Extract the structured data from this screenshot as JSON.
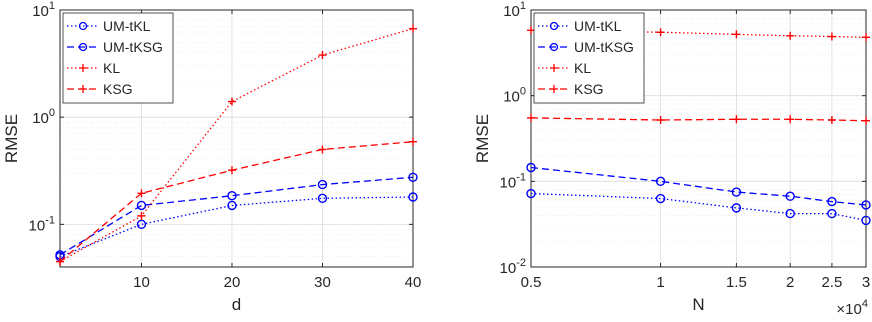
{
  "chart_data": [
    {
      "type": "line",
      "xlabel": "d",
      "ylabel": "RMSE",
      "yscale": "log",
      "xlim": [
        1,
        40
      ],
      "ylim": [
        0.04,
        10
      ],
      "xticks": [
        10,
        20,
        30,
        40
      ],
      "xtick_labels": [
        "10",
        "20",
        "30",
        "40"
      ],
      "yticks": [
        0.1,
        1,
        10
      ],
      "ytick_labels": [
        {
          "base": "10",
          "exp": "-1"
        },
        {
          "base": "10",
          "exp": "0"
        },
        {
          "base": "10",
          "exp": "1"
        }
      ],
      "grid": true,
      "legend_position": "top-left",
      "x": [
        1,
        10,
        20,
        30,
        40
      ],
      "series": [
        {
          "name": "UM-tKL",
          "color": "#0000ff",
          "dash": "dotted",
          "marker": "circle",
          "values": [
            0.05,
            0.1,
            0.15,
            0.175,
            0.18
          ]
        },
        {
          "name": "UM-tKSG",
          "color": "#0000ff",
          "dash": "dashed",
          "marker": "circle",
          "values": [
            0.052,
            0.15,
            0.185,
            0.235,
            0.275
          ]
        },
        {
          "name": "KL",
          "color": "#ff0000",
          "dash": "dotted",
          "marker": "plus",
          "values": [
            0.045,
            0.12,
            1.4,
            3.8,
            6.7
          ]
        },
        {
          "name": "KSG",
          "color": "#ff0000",
          "dash": "dashed",
          "marker": "plus",
          "values": [
            0.045,
            0.195,
            0.32,
            0.5,
            0.59
          ]
        }
      ]
    },
    {
      "type": "line",
      "xlabel": "N",
      "ylabel": "RMSE",
      "xscale": "log",
      "yscale": "log",
      "xlim": [
        5000,
        30000
      ],
      "ylim": [
        0.01,
        10
      ],
      "xticks": [
        5000,
        10000,
        15000,
        20000,
        25000,
        30000
      ],
      "xtick_labels": [
        "0.5",
        "1",
        "1.5",
        "2",
        "2.5",
        "3"
      ],
      "x_multiplier": {
        "base": "×10",
        "exp": "4"
      },
      "yticks": [
        0.01,
        0.1,
        1,
        10
      ],
      "ytick_labels": [
        {
          "base": "10",
          "exp": "-2"
        },
        {
          "base": "10",
          "exp": "-1"
        },
        {
          "base": "10",
          "exp": "0"
        },
        {
          "base": "10",
          "exp": "1"
        }
      ],
      "grid": true,
      "legend_position": "top-left",
      "x": [
        5000,
        10000,
        15000,
        20000,
        25000,
        30000
      ],
      "series": [
        {
          "name": "UM-tKL",
          "color": "#0000ff",
          "dash": "dotted",
          "marker": "circle",
          "values": [
            0.072,
            0.063,
            0.049,
            0.042,
            0.042,
            0.035
          ]
        },
        {
          "name": "UM-tKSG",
          "color": "#0000ff",
          "dash": "dashed",
          "marker": "circle",
          "values": [
            0.145,
            0.1,
            0.075,
            0.067,
            0.058,
            0.053
          ]
        },
        {
          "name": "KL",
          "color": "#ff0000",
          "dash": "dotted",
          "marker": "plus",
          "values": [
            5.8,
            5.5,
            5.2,
            5.0,
            4.9,
            4.8
          ]
        },
        {
          "name": "KSG",
          "color": "#ff0000",
          "dash": "dashed",
          "marker": "plus",
          "values": [
            0.55,
            0.52,
            0.53,
            0.53,
            0.52,
            0.51
          ]
        }
      ]
    }
  ]
}
